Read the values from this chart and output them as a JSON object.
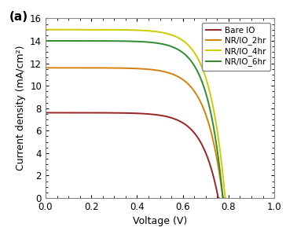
{
  "title": "(a)",
  "xlabel": "Voltage (V)",
  "ylabel": "Current density (mA/cm²)",
  "xlim": [
    0,
    1.0
  ],
  "ylim": [
    0,
    16
  ],
  "xticks": [
    0.0,
    0.2,
    0.4,
    0.6,
    0.8,
    1.0
  ],
  "yticks": [
    0,
    2,
    4,
    6,
    8,
    10,
    12,
    14,
    16
  ],
  "series": [
    {
      "label": "Bare IO",
      "color": "#9B2222",
      "jsc": 7.6,
      "voc": 0.755,
      "n_ideal": 2.8
    },
    {
      "label": "NR/IO_2hr",
      "color": "#D4820A",
      "jsc": 11.6,
      "voc": 0.775,
      "n_ideal": 2.8
    },
    {
      "label": "NR/IO_4hr",
      "color": "#CCCC00",
      "jsc": 15.0,
      "voc": 0.785,
      "n_ideal": 2.6
    },
    {
      "label": "NR/IO_6hr",
      "color": "#2E8B2E",
      "jsc": 14.0,
      "voc": 0.775,
      "n_ideal": 2.6
    }
  ],
  "background_color": "#ffffff",
  "figure_background": "#ffffff"
}
